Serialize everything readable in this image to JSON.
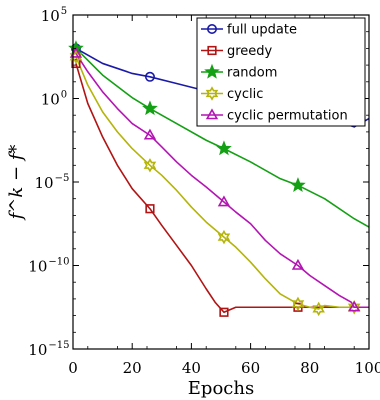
{
  "chart_data": {
    "type": "line",
    "xlabel": "Epochs",
    "ylabel": "f^k − f*",
    "xlim": [
      0,
      100
    ],
    "ylim_log10": [
      -15,
      5
    ],
    "y_scale": "log",
    "grid": false,
    "legend_position": "top-right",
    "x_ticks": [
      "0",
      "20",
      "40",
      "60",
      "80",
      "100"
    ],
    "y_ticks": [
      {
        "base": "10",
        "exp": "5"
      },
      {
        "base": "10",
        "exp": "0"
      },
      {
        "base": "10",
        "exp": "−5"
      },
      {
        "base": "10",
        "exp": "−10"
      },
      {
        "base": "10",
        "exp": "−15"
      }
    ],
    "series": [
      {
        "name": "full update",
        "color": "#1a1aa8",
        "marker": "circle",
        "x": [
          1,
          10,
          20,
          26,
          35,
          45,
          51,
          60,
          70,
          76,
          85,
          95,
          100
        ],
        "log10_y": [
          3.0,
          2.1,
          1.5,
          1.3,
          0.9,
          0.45,
          0.3,
          -0.1,
          -0.5,
          -0.7,
          -1.1,
          -1.7,
          -1.2
        ],
        "marker_x": [
          1,
          26,
          51,
          76
        ]
      },
      {
        "name": "greedy",
        "color": "#b21414",
        "marker": "square",
        "x": [
          1,
          5,
          10,
          15,
          20,
          26,
          30,
          35,
          40,
          45,
          48,
          50,
          51,
          55,
          60,
          65,
          70,
          76,
          80,
          85,
          90,
          95,
          100
        ],
        "log10_y": [
          2.1,
          -0.3,
          -2.3,
          -4.0,
          -5.4,
          -6.6,
          -7.6,
          -8.8,
          -10.0,
          -11.4,
          -12.2,
          -12.6,
          -12.8,
          -12.5,
          -12.5,
          -12.5,
          -12.5,
          -12.5,
          -12.5,
          -12.5,
          -12.5,
          -12.5,
          -12.5
        ],
        "marker_x": [
          1,
          26,
          51,
          76
        ]
      },
      {
        "name": "random",
        "color": "#14a014",
        "marker": "star",
        "x": [
          1,
          10,
          20,
          26,
          35,
          45,
          51,
          60,
          70,
          76,
          85,
          95,
          100
        ],
        "log10_y": [
          3.0,
          1.4,
          0.05,
          -0.6,
          -1.5,
          -2.5,
          -3.0,
          -3.8,
          -4.8,
          -5.2,
          -6.0,
          -7.2,
          -7.7
        ],
        "marker_x": [
          1,
          26,
          51,
          76
        ]
      },
      {
        "name": "cyclic",
        "color": "#b4b40a",
        "marker": "hexagram",
        "x": [
          1,
          5,
          10,
          15,
          20,
          26,
          30,
          35,
          40,
          45,
          51,
          55,
          60,
          65,
          70,
          76,
          80,
          83,
          85,
          90,
          95,
          100
        ],
        "log10_y": [
          2.5,
          0.8,
          -0.8,
          -2.0,
          -3.0,
          -4.0,
          -4.6,
          -5.5,
          -6.5,
          -7.4,
          -8.3,
          -8.9,
          -9.8,
          -10.8,
          -11.7,
          -12.3,
          -12.5,
          -12.6,
          -12.4,
          -12.5,
          -12.5,
          -12.5
        ],
        "marker_x": [
          1,
          26,
          51,
          76,
          83,
          95
        ]
      },
      {
        "name": "cyclic permutation",
        "color": "#b414b4",
        "marker": "triangle",
        "x": [
          1,
          5,
          10,
          15,
          20,
          26,
          30,
          35,
          40,
          45,
          51,
          55,
          60,
          65,
          70,
          76,
          80,
          85,
          90,
          94,
          95,
          100
        ],
        "log10_y": [
          2.7,
          1.6,
          0.4,
          -0.6,
          -1.5,
          -2.2,
          -2.9,
          -3.8,
          -4.6,
          -5.3,
          -6.2,
          -6.8,
          -7.5,
          -8.5,
          -9.3,
          -10.0,
          -10.6,
          -11.2,
          -11.8,
          -12.2,
          -12.5,
          -12.5
        ],
        "marker_x": [
          1,
          26,
          51,
          76,
          95
        ]
      }
    ]
  }
}
